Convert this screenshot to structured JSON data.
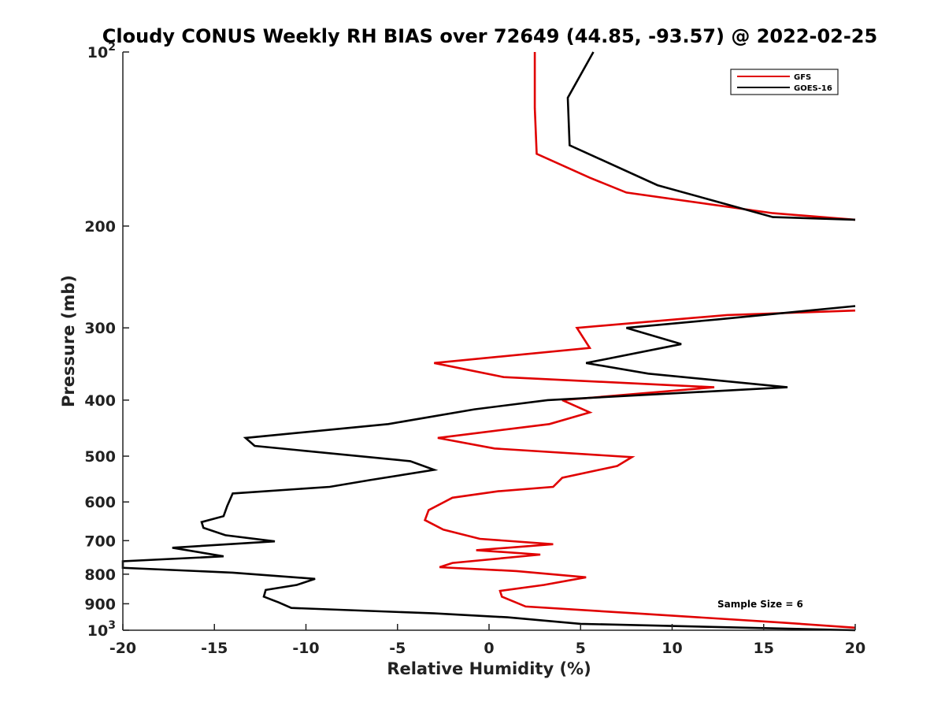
{
  "chart_data": {
    "type": "line",
    "title": "Cloudy CONUS Weekly RH BIAS over 72649 (44.85, -93.57) @ 2022-02-25",
    "xlabel": "Relative Humidity (%)",
    "ylabel": "Pressure (mb)",
    "xlim": [
      -20,
      20
    ],
    "ylim": [
      100,
      1000
    ],
    "y_scale": "log",
    "y_reversed": true,
    "grid": false,
    "legend_position": "top-right",
    "xticks": [
      -20,
      -15,
      -10,
      -5,
      0,
      5,
      10,
      15,
      20
    ],
    "yticks": [
      {
        "value": 100,
        "base": "10",
        "exp": "2"
      },
      {
        "value": 200,
        "label": "200"
      },
      {
        "value": 300,
        "label": "300"
      },
      {
        "value": 400,
        "label": "400"
      },
      {
        "value": 500,
        "label": "500"
      },
      {
        "value": 600,
        "label": "600"
      },
      {
        "value": 700,
        "label": "700"
      },
      {
        "value": 800,
        "label": "800"
      },
      {
        "value": 900,
        "label": "900"
      },
      {
        "value": 1000,
        "base": "10",
        "exp": "3"
      }
    ],
    "annotation": "Sample Size = 6",
    "series": [
      {
        "name": "GFS",
        "color": "#e00000",
        "segments": [
          [
            [
              2.5,
              100
            ],
            [
              2.5,
              125
            ],
            [
              2.6,
              150
            ],
            [
              5.5,
              165
            ],
            [
              7.5,
              175
            ],
            [
              15.5,
              190
            ],
            [
              20,
              195
            ]
          ],
          [
            [
              20,
              280
            ],
            [
              13,
              285
            ],
            [
              7.5,
              295
            ],
            [
              4.8,
              300
            ],
            [
              5.5,
              325
            ],
            [
              -3.0,
              345
            ],
            [
              0.8,
              365
            ],
            [
              12.3,
              380
            ],
            [
              4.0,
              400
            ],
            [
              5.5,
              420
            ],
            [
              3.3,
              440
            ],
            [
              -2.8,
              465
            ],
            [
              0.3,
              485
            ],
            [
              7.8,
              502
            ],
            [
              7.0,
              520
            ],
            [
              4.0,
              545
            ],
            [
              3.5,
              565
            ],
            [
              0.5,
              575
            ],
            [
              -2.0,
              590
            ],
            [
              -3.3,
              620
            ],
            [
              -3.5,
              645
            ],
            [
              -2.5,
              670
            ],
            [
              -0.5,
              695
            ],
            [
              3.5,
              710
            ],
            [
              -0.7,
              727
            ],
            [
              2.8,
              740
            ],
            [
              -2.0,
              765
            ],
            [
              -2.7,
              778
            ],
            [
              1.5,
              790
            ],
            [
              5.3,
              810
            ],
            [
              3.0,
              835
            ],
            [
              0.6,
              855
            ],
            [
              0.7,
              875
            ],
            [
              2.0,
              910
            ],
            [
              8.0,
              935
            ],
            [
              16.0,
              970
            ],
            [
              20,
              990
            ]
          ]
        ]
      },
      {
        "name": "GOES-16",
        "color": "#000000",
        "segments": [
          [
            [
              5.7,
              100
            ],
            [
              4.3,
              120
            ],
            [
              4.4,
              145
            ],
            [
              9.2,
              170
            ],
            [
              15.5,
              193
            ],
            [
              20,
              195
            ]
          ],
          [
            [
              20,
              275
            ],
            [
              12.5,
              290
            ],
            [
              7.5,
              300
            ],
            [
              10.5,
              320
            ],
            [
              5.3,
              345
            ],
            [
              8.7,
              360
            ],
            [
              16.3,
              380
            ],
            [
              3.2,
              400
            ],
            [
              -0.8,
              415
            ],
            [
              -5.5,
              440
            ],
            [
              -13.3,
              465
            ],
            [
              -12.8,
              480
            ],
            [
              -4.3,
              510
            ],
            [
              -3.0,
              528
            ],
            [
              -6.5,
              550
            ],
            [
              -8.7,
              565
            ],
            [
              -14.0,
              580
            ],
            [
              -14.3,
              610
            ],
            [
              -14.5,
              635
            ],
            [
              -15.7,
              650
            ],
            [
              -15.6,
              665
            ],
            [
              -14.4,
              685
            ],
            [
              -11.7,
              702
            ],
            [
              -17.3,
              720
            ],
            [
              -14.5,
              745
            ],
            [
              -20,
              760
            ],
            [
              -20,
              780
            ],
            [
              -14.0,
              795
            ],
            [
              -9.5,
              815
            ],
            [
              -10.5,
              835
            ],
            [
              -12.2,
              852
            ],
            [
              -12.3,
              875
            ],
            [
              -11.5,
              895
            ],
            [
              -10.8,
              915
            ],
            [
              -3.0,
              935
            ],
            [
              1.0,
              950
            ],
            [
              5.0,
              975
            ],
            [
              20,
              1000
            ]
          ]
        ]
      }
    ]
  }
}
